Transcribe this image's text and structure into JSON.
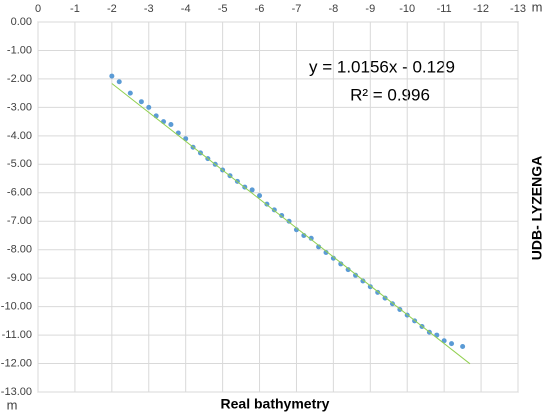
{
  "chart_data": {
    "type": "scatter",
    "xlabel": "Real bathymetry",
    "ylabel": "UDB- LYZENGA",
    "x_unit": "m",
    "y_unit": "m",
    "annotations": [
      "y = 1.0156x - 0.129",
      "R² = 0.996"
    ],
    "color": "#5b9bd5",
    "grid": true,
    "xlim": [
      0,
      -13
    ],
    "xticks": [
      0,
      -1,
      -2,
      -3,
      -4,
      -5,
      -6,
      -7,
      -8,
      -9,
      -10,
      -11,
      -12,
      -13
    ],
    "ylim": [
      -13,
      0
    ],
    "yticks": [
      {
        "value": 0,
        "label": "0.00"
      },
      {
        "value": -1,
        "label": "-1.00"
      },
      {
        "value": -2,
        "label": "-2.00"
      },
      {
        "value": -3,
        "label": "-3.00"
      },
      {
        "value": -4,
        "label": "-4.00"
      },
      {
        "value": -5,
        "label": "-5.00"
      },
      {
        "value": -6,
        "label": "-6.00"
      },
      {
        "value": -7,
        "label": "-7.00"
      },
      {
        "value": -8,
        "label": "-8.00"
      },
      {
        "value": -9,
        "label": "-9.00"
      },
      {
        "value": -10,
        "label": "-10.00"
      },
      {
        "value": -11,
        "label": "-11.00"
      },
      {
        "value": -12,
        "label": "-12.00"
      },
      {
        "value": -13,
        "label": "-13.00"
      }
    ],
    "x": [
      -2.0,
      -2.2,
      -2.5,
      -2.8,
      -3.0,
      -3.2,
      -3.4,
      -3.6,
      -3.8,
      -4.0,
      -4.2,
      -4.4,
      -4.6,
      -4.8,
      -5.0,
      -5.2,
      -5.4,
      -5.6,
      -5.8,
      -6.0,
      -6.2,
      -6.4,
      -6.6,
      -6.8,
      -7.0,
      -7.2,
      -7.4,
      -7.6,
      -7.8,
      -8.0,
      -8.2,
      -8.4,
      -8.6,
      -8.8,
      -9.0,
      -9.2,
      -9.4,
      -9.6,
      -9.8,
      -10.0,
      -10.2,
      -10.4,
      -10.6,
      -10.8,
      -11.0,
      -11.2,
      -11.5
    ],
    "y": [
      -1.9,
      -2.1,
      -2.5,
      -2.8,
      -3.0,
      -3.3,
      -3.5,
      -3.6,
      -3.9,
      -4.1,
      -4.4,
      -4.6,
      -4.8,
      -5.0,
      -5.2,
      -5.4,
      -5.6,
      -5.8,
      -5.9,
      -6.1,
      -6.4,
      -6.6,
      -6.8,
      -7.0,
      -7.3,
      -7.5,
      -7.6,
      -7.9,
      -8.1,
      -8.3,
      -8.5,
      -8.7,
      -8.9,
      -9.1,
      -9.3,
      -9.5,
      -9.7,
      -9.9,
      -10.1,
      -10.3,
      -10.5,
      -10.7,
      -10.9,
      -11.0,
      -11.2,
      -11.3,
      -11.4
    ],
    "trendline": {
      "x": [
        -2.0,
        -11.7
      ],
      "y": [
        -2.16,
        -12.01
      ],
      "color": "#92d050"
    }
  }
}
